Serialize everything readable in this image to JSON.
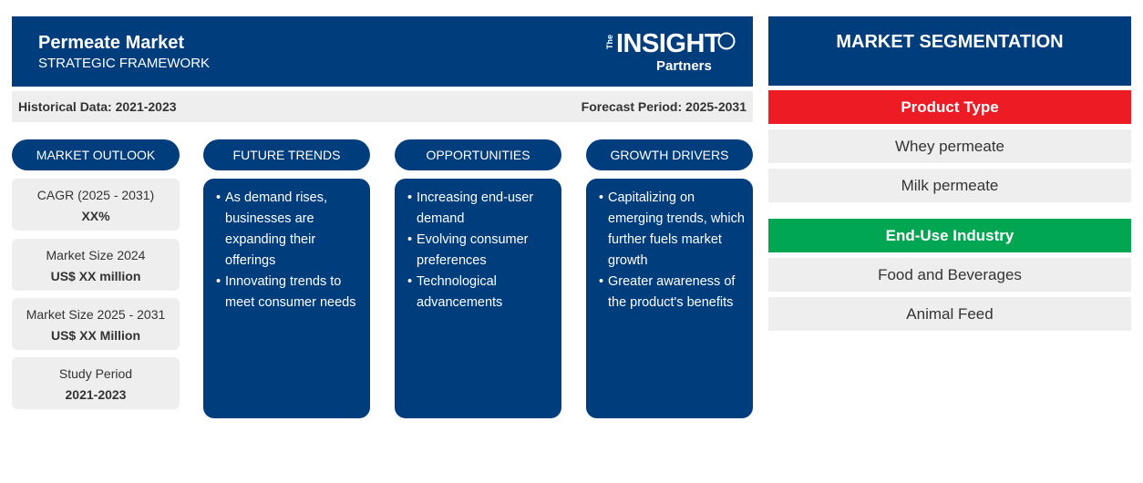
{
  "header": {
    "title": "Permeate Market",
    "subtitle": "STRATEGIC FRAMEWORK",
    "logo": {
      "the": "The",
      "insight": "INSIGHT",
      "partners": "Partners"
    }
  },
  "info": {
    "historical": "Historical Data: 2021-2023",
    "forecast": "Forecast Period: 2025-2031"
  },
  "columns": {
    "outlook": "MARKET OUTLOOK",
    "trends": "FUTURE TRENDS",
    "opportunities": "OPPORTUNITIES",
    "drivers": "GROWTH DRIVERS"
  },
  "outlook": [
    {
      "label": "CAGR (2025 - 2031)",
      "value": "XX%"
    },
    {
      "label": "Market Size 2024",
      "value": "US$ XX million"
    },
    {
      "label": "Market Size 2025 - 2031",
      "value": "US$ XX Million"
    },
    {
      "label": "Study Period",
      "value": "2021-2023"
    }
  ],
  "trends": [
    "As demand rises, businesses are expanding their offerings",
    "Innovating trends to meet consumer needs"
  ],
  "opportunities": [
    "Increasing end-user demand",
    "Evolving consumer preferences",
    "Technological advancements"
  ],
  "drivers": [
    "Capitalizing on emerging trends, which further fuels market growth",
    "Greater awareness of the product's benefits"
  ],
  "segmentation": {
    "title": "MARKET SEGMENTATION",
    "product_type": {
      "label": "Product Type",
      "color": "#ed1c24",
      "items": [
        "Whey permeate",
        "Milk permeate"
      ]
    },
    "end_use": {
      "label": "End-Use Industry",
      "color": "#00a651",
      "items": [
        "Food and Beverages",
        "Animal Feed"
      ]
    }
  },
  "colors": {
    "primary": "#003d7c",
    "light_gray": "#eeeeee"
  }
}
